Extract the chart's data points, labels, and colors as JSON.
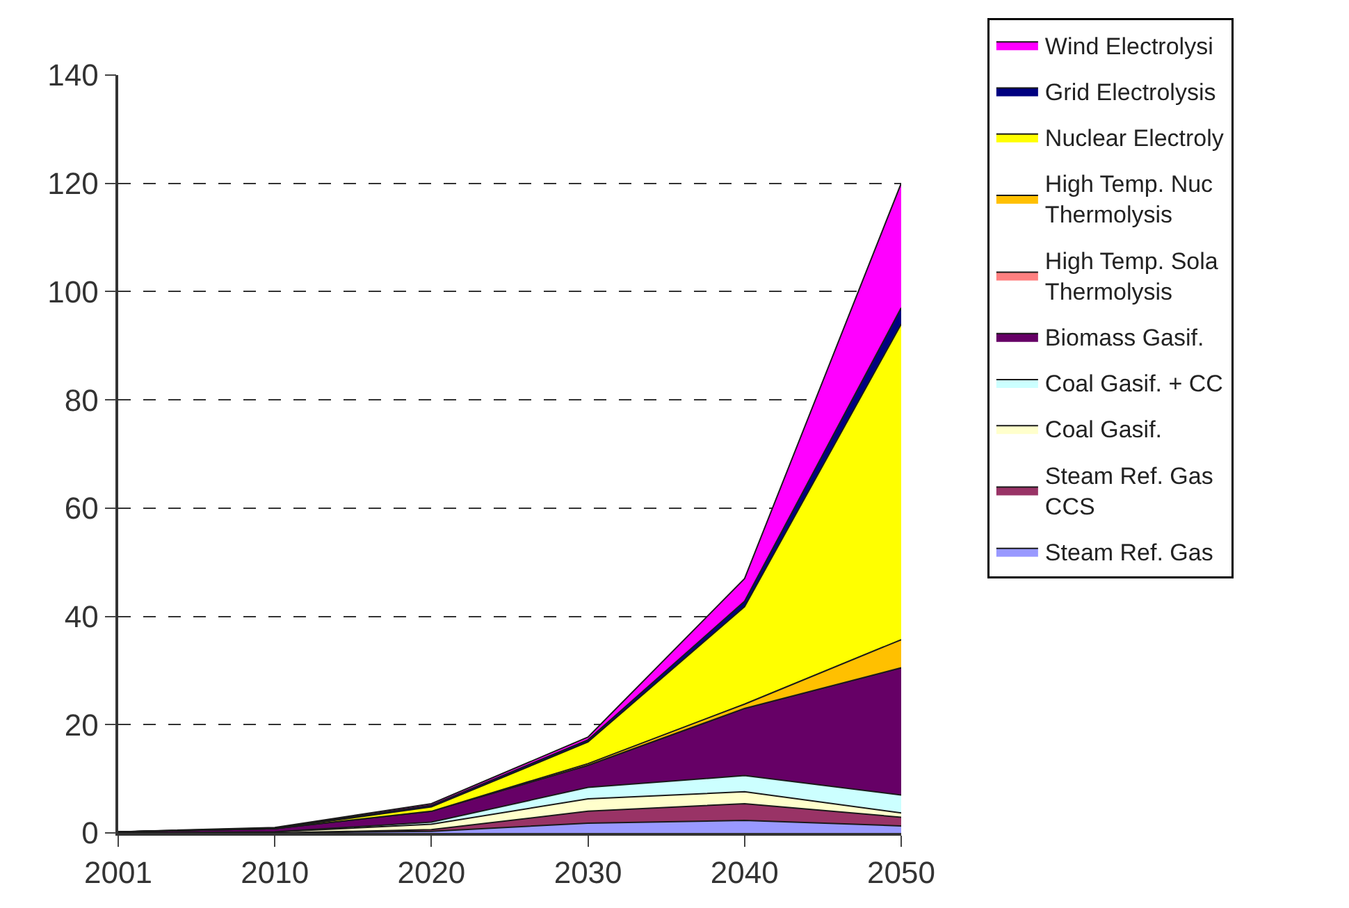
{
  "chart_data": {
    "type": "area",
    "stacked": true,
    "categories": [
      "2001",
      "2010",
      "2020",
      "2030",
      "2040",
      "2050"
    ],
    "ylim": [
      0,
      140
    ],
    "yticks": [
      0,
      20,
      40,
      60,
      80,
      100,
      120,
      140
    ],
    "grid": "y",
    "legend": "right",
    "series": [
      {
        "name": "Steam Ref. Gas",
        "color": "#9999ff",
        "values": [
          0,
          0,
          0.3,
          1.8,
          2.3,
          1.3
        ]
      },
      {
        "name": "Steam Ref. Gas\nCCS",
        "color": "#993366",
        "values": [
          0,
          0,
          0.3,
          2.2,
          3.1,
          1.6
        ]
      },
      {
        "name": "Coal Gasif.",
        "color": "#ffffcc",
        "values": [
          0,
          0.2,
          1.0,
          2.3,
          2.2,
          0.8
        ]
      },
      {
        "name": "Coal Gasif. + CC",
        "color": "#ccffff",
        "values": [
          0,
          0,
          0.4,
          2.1,
          3.0,
          3.3
        ]
      },
      {
        "name": "Biomass Gasif.",
        "color": "#660066",
        "values": [
          0.2,
          0.6,
          2.0,
          4.1,
          12.4,
          23.5
        ]
      },
      {
        "name": "High Temp. Sola\nThermolysis",
        "color": "#ff8080",
        "values": [
          null,
          null,
          null,
          null,
          null,
          null
        ]
      },
      {
        "name": "High Temp. Nuc\nThermolysis",
        "color": "#ffc000",
        "values": [
          0,
          0,
          0,
          0.3,
          0.8,
          5.2
        ]
      },
      {
        "name": "Nuclear Electroly",
        "color": "#ffff00",
        "values": [
          0,
          0,
          0.8,
          4.0,
          18,
          58.3
        ]
      },
      {
        "name": "Grid Electrolysis",
        "color": "#000080",
        "values": [
          0,
          0.1,
          0.3,
          0.4,
          1,
          3
        ]
      },
      {
        "name": "Wind Electrolysi",
        "color": "#ff00ff",
        "values": [
          0,
          0.1,
          0.3,
          0.5,
          4.2,
          23
        ]
      }
    ]
  }
}
